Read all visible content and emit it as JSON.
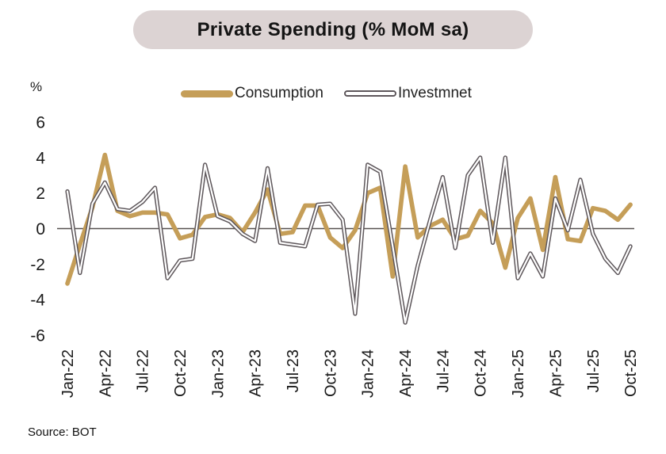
{
  "header": {
    "title": "Private Spending (% MoM sa)"
  },
  "y_axis_unit": "%",
  "legend": {
    "consumption_label": "Consumption",
    "investment_label": "Investmnet"
  },
  "footer": {
    "source": "Source: BOT"
  },
  "colors": {
    "consumption": "#C59E58",
    "investment_outline": "#5E575B",
    "investment_core": "#FFFFFF",
    "axis": "#55504F",
    "title_pill_bg": "#DCD3D3"
  },
  "chart_data": {
    "type": "line",
    "title": "Private Spending (% MoM sa)",
    "ylabel": "%",
    "ylim": [
      -6,
      6
    ],
    "y_ticks": [
      6,
      4,
      2,
      0,
      -2,
      -4,
      -6
    ],
    "grid": false,
    "legend_position": "top-center",
    "source": "BOT",
    "categories": [
      "Jan-22",
      "Feb-22",
      "Mar-22",
      "Apr-22",
      "May-22",
      "Jun-22",
      "Jul-22",
      "Aug-22",
      "Sep-22",
      "Oct-22",
      "Nov-22",
      "Dec-22",
      "Jan-23",
      "Feb-23",
      "Mar-23",
      "Apr-23",
      "May-23",
      "Jun-23",
      "Jul-23",
      "Aug-23",
      "Sep-23",
      "Oct-23",
      "Nov-23",
      "Dec-23",
      "Jan-24",
      "Feb-24",
      "Mar-24",
      "Apr-24",
      "May-24",
      "Jun-24",
      "Jul-24",
      "Aug-24",
      "Sep-24",
      "Oct-24",
      "Nov-24",
      "Dec-24",
      "Jan-25",
      "Feb-25",
      "Mar-25",
      "Apr-25",
      "May-25",
      "Jun-25",
      "Jul-25",
      "Aug-25",
      "Sep-25",
      "Oct-25"
    ],
    "x_tick_labels": [
      "Jan-22",
      "Apr-22",
      "Jul-22",
      "Oct-22",
      "Jan-23",
      "Apr-23",
      "Jul-23",
      "Oct-23",
      "Jan-24",
      "Apr-24",
      "Jul-24",
      "Oct-24",
      "Jan-25",
      "Apr-25",
      "Jul-25",
      "Oct-25"
    ],
    "series": [
      {
        "name": "Consumption",
        "style": "solid",
        "color": "#C59E58",
        "values": [
          -3.1,
          -0.9,
          1.2,
          4.15,
          1.0,
          0.7,
          0.9,
          0.9,
          0.8,
          -0.55,
          -0.35,
          0.65,
          0.8,
          0.6,
          -0.2,
          0.9,
          2.2,
          -0.3,
          -0.2,
          1.3,
          1.3,
          -0.5,
          -1.1,
          -0.1,
          2.0,
          2.3,
          -2.7,
          3.5,
          -0.5,
          0.15,
          0.5,
          -0.6,
          -0.4,
          1.0,
          0.3,
          -2.2,
          0.6,
          1.7,
          -1.2,
          2.9,
          -0.6,
          -0.7,
          1.15,
          1.0,
          0.5,
          1.35
        ]
      },
      {
        "name": "Investmnet",
        "style": "outline-white-core",
        "color": "#5E575B",
        "values": [
          2.1,
          -2.5,
          1.4,
          2.6,
          1.1,
          1.0,
          1.5,
          2.3,
          -2.8,
          -1.8,
          -1.7,
          3.6,
          0.7,
          0.4,
          -0.3,
          -0.7,
          3.4,
          -0.8,
          -0.9,
          -1.0,
          1.35,
          1.4,
          0.5,
          -4.8,
          3.6,
          3.2,
          -1.0,
          -5.3,
          -2.1,
          0.5,
          2.9,
          -1.1,
          3.0,
          4.0,
          -0.8,
          4.0,
          -2.8,
          -1.4,
          -2.7,
          1.7,
          -0.1,
          2.75,
          -0.3,
          -1.7,
          -2.5,
          -1.0
        ]
      }
    ]
  }
}
